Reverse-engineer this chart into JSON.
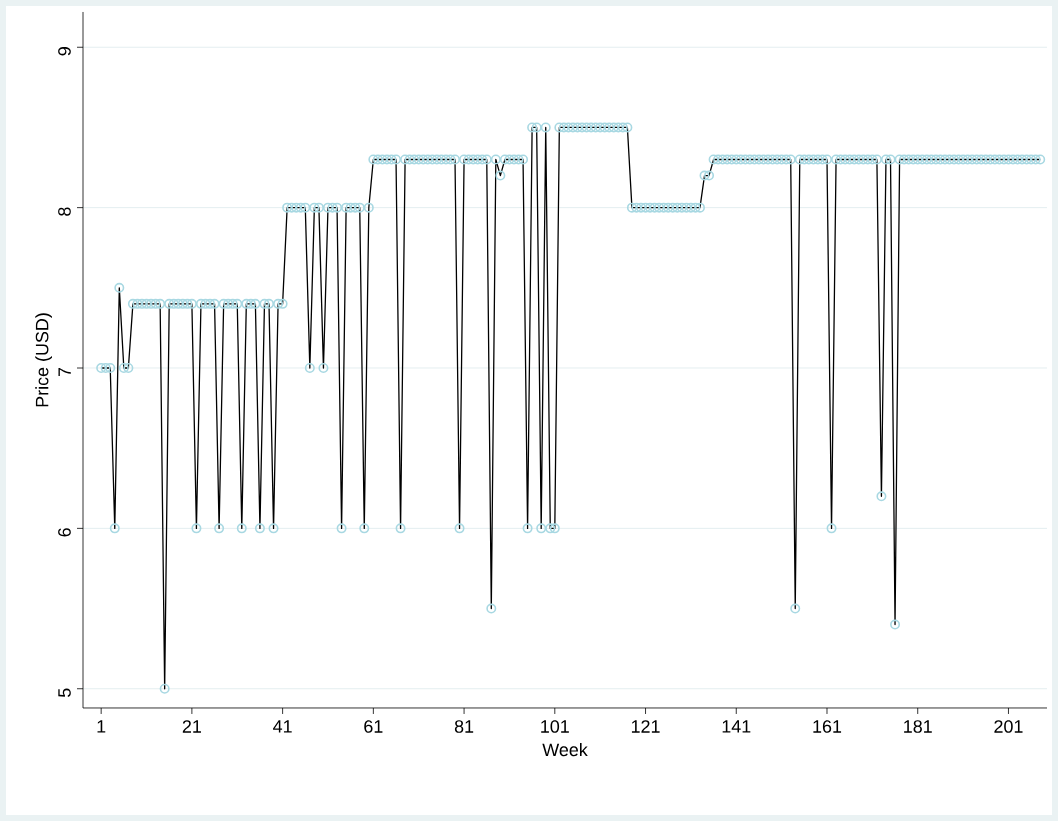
{
  "chart_data": {
    "type": "line",
    "xlabel": "Week",
    "ylabel": "Price (USD)",
    "x": [
      1,
      2,
      3,
      4,
      5,
      6,
      7,
      8,
      9,
      10,
      11,
      12,
      13,
      14,
      15,
      16,
      17,
      18,
      19,
      20,
      21,
      22,
      23,
      24,
      25,
      26,
      27,
      28,
      29,
      30,
      31,
      32,
      33,
      34,
      35,
      36,
      37,
      38,
      39,
      40,
      41,
      42,
      43,
      44,
      45,
      46,
      47,
      48,
      49,
      50,
      51,
      52,
      53,
      54,
      55,
      56,
      57,
      58,
      59,
      60,
      61,
      62,
      63,
      64,
      65,
      66,
      67,
      68,
      69,
      70,
      71,
      72,
      73,
      74,
      75,
      76,
      77,
      78,
      79,
      80,
      81,
      82,
      83,
      84,
      85,
      86,
      87,
      88,
      89,
      90,
      91,
      92,
      93,
      94,
      95,
      96,
      97,
      98,
      99,
      100,
      101,
      102,
      103,
      104,
      105,
      106,
      107,
      108,
      109,
      110,
      111,
      112,
      113,
      114,
      115,
      116,
      117,
      118,
      119,
      120,
      121,
      122,
      123,
      124,
      125,
      126,
      127,
      128,
      129,
      130,
      131,
      132,
      133,
      134,
      135,
      136,
      137,
      138,
      139,
      140,
      141,
      142,
      143,
      144,
      145,
      146,
      147,
      148,
      149,
      150,
      151,
      152,
      153,
      154,
      155,
      156,
      157,
      158,
      159,
      160,
      161,
      162,
      163,
      164,
      165,
      166,
      167,
      168,
      169,
      170,
      171,
      172,
      173,
      174,
      175,
      176,
      177,
      178,
      179,
      180,
      181,
      182,
      183,
      184,
      185,
      186,
      187,
      188,
      189,
      190,
      191,
      192,
      193,
      194,
      195,
      196,
      197,
      198,
      199,
      200,
      201,
      202,
      203,
      204,
      205,
      206,
      207,
      208
    ],
    "series": [
      {
        "color": "#000000",
        "values": [
          7,
          7,
          7,
          6,
          7.5,
          7,
          7,
          7.4,
          7.4,
          7.4,
          7.4,
          7.4,
          7.4,
          7.4,
          5,
          7.4,
          7.4,
          7.4,
          7.4,
          7.4,
          7.4,
          6,
          7.4,
          7.4,
          7.4,
          7.4,
          6,
          7.4,
          7.4,
          7.4,
          7.4,
          6,
          7.4,
          7.4,
          7.4,
          6,
          7.4,
          7.4,
          6,
          7.4,
          7.4,
          8,
          8,
          8,
          8,
          8,
          7,
          8,
          8,
          7,
          8,
          8,
          8,
          6,
          8,
          8,
          8,
          8,
          6,
          8,
          8.3,
          8.3,
          8.3,
          8.3,
          8.3,
          8.3,
          6,
          8.3,
          8.3,
          8.3,
          8.3,
          8.3,
          8.3,
          8.3,
          8.3,
          8.3,
          8.3,
          8.3,
          8.3,
          6,
          8.3,
          8.3,
          8.3,
          8.3,
          8.3,
          8.3,
          5.5,
          8.3,
          8.2,
          8.3,
          8.3,
          8.3,
          8.3,
          8.3,
          6,
          8.5,
          8.5,
          6,
          8.5,
          6,
          6,
          8.5,
          8.5,
          8.5,
          8.5,
          8.5,
          8.5,
          8.5,
          8.5,
          8.5,
          8.5,
          8.5,
          8.5,
          8.5,
          8.5,
          8.5,
          8.5,
          8,
          8,
          8,
          8,
          8,
          8,
          8,
          8,
          8,
          8,
          8,
          8,
          8,
          8,
          8,
          8,
          8.2,
          8.2,
          8.3,
          8.3,
          8.3,
          8.3,
          8.3,
          8.3,
          8.3,
          8.3,
          8.3,
          8.3,
          8.3,
          8.3,
          8.3,
          8.3,
          8.3,
          8.3,
          8.3,
          8.3,
          5.5,
          8.3,
          8.3,
          8.3,
          8.3,
          8.3,
          8.3,
          8.3,
          6,
          8.3,
          8.3,
          8.3,
          8.3,
          8.3,
          8.3,
          8.3,
          8.3,
          8.3,
          8.3,
          6.2,
          8.3,
          8.3,
          5.4,
          8.3,
          8.3,
          8.3,
          8.3,
          8.3,
          8.3,
          8.3,
          8.3,
          8.3,
          8.3,
          8.3,
          8.3,
          8.3,
          8.3,
          8.3,
          8.3,
          8.3,
          8.3,
          8.3,
          8.3,
          8.3,
          8.3,
          8.3,
          8.3,
          8.3,
          8.3,
          8.3,
          8.3,
          8.3,
          8.3,
          8.3,
          8.3
        ]
      }
    ],
    "xlim": [
      -3,
      209.5
    ],
    "ylim": [
      4.88,
      9.22
    ],
    "xticks": [
      1,
      21,
      41,
      61,
      81,
      101,
      121,
      141,
      161,
      181,
      201
    ],
    "yticks": [
      5,
      6,
      7,
      8,
      9
    ],
    "grid": "y",
    "marker": "circle",
    "line_style": "solid"
  }
}
